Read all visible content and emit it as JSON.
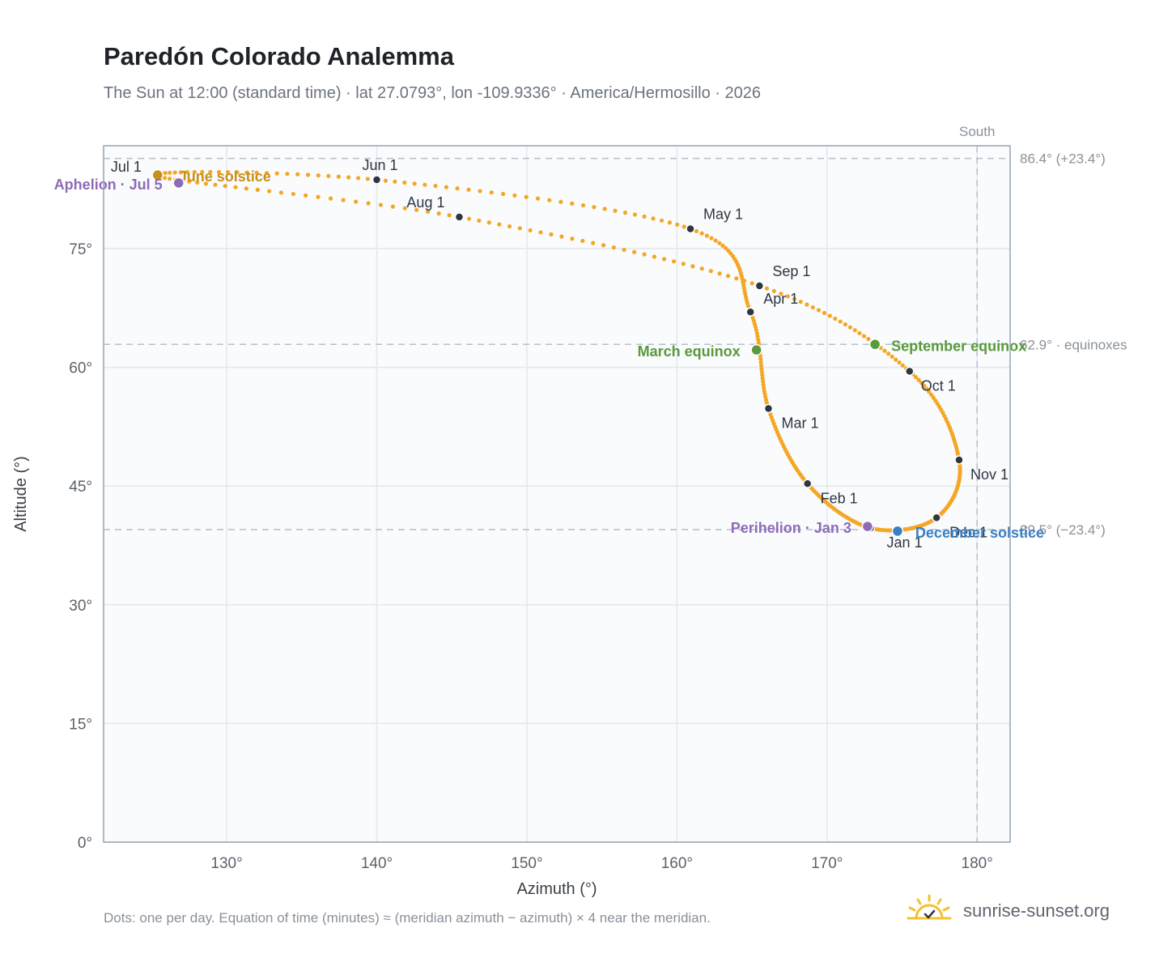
{
  "title": "Paredón Colorado Analemma",
  "subtitle": "The Sun at 12:00 (standard time) · lat 27.0793°, lon -109.9336° · America/Hermosillo · 2026",
  "footnote": "Dots: one per day. Equation of time (minutes) ≈ (meridian azimuth − azimuth) × 4 near the meridian.",
  "brand": "sunrise-sunset.org",
  "colors": {
    "curve": "#f5a623",
    "month_marker": "#2f3640",
    "solstice_june": "#c8901a",
    "solstice_december": "#3b7fc4",
    "equinox": "#5a9a3a",
    "apsis": "#8e6bb8",
    "grid": "#e3e8ee",
    "plot_bg": "#f9fbfd",
    "reference_line": "#b3c0cc"
  },
  "chart_data": {
    "type": "scatter",
    "xlabel": "Azimuth (°)",
    "ylabel": "Altitude (°)",
    "xlim": [
      121.8,
      182.2
    ],
    "ylim": [
      0,
      88
    ],
    "x_ticks": [
      130,
      140,
      150,
      160,
      170,
      180
    ],
    "x_tick_labels": [
      "130°",
      "140°",
      "150°",
      "160°",
      "170°",
      "180°"
    ],
    "y_ticks": [
      0,
      15,
      30,
      45,
      60,
      75
    ],
    "y_tick_labels": [
      "0°",
      "15°",
      "30°",
      "45°",
      "60°",
      "75°"
    ],
    "grid": true,
    "south_line": {
      "azimuth": 180,
      "label": "South"
    },
    "reference_lines": [
      {
        "altitude": 86.4,
        "label": "86.4° (+23.4°)"
      },
      {
        "altitude": 62.9,
        "label": "62.9° · equinoxes"
      },
      {
        "altitude": 39.5,
        "label": "39.5° (−23.4°)"
      }
    ],
    "daily_path": [
      {
        "azimuth": 172.9,
        "altitude": 39.7,
        "label": "Jan 1"
      },
      {
        "azimuth": 168.7,
        "altitude": 45.3,
        "label": "Feb 1"
      },
      {
        "azimuth": 166.1,
        "altitude": 54.8,
        "label": "Mar 1"
      },
      {
        "azimuth": 164.9,
        "altitude": 67.0,
        "label": "Apr 1"
      },
      {
        "azimuth": 160.9,
        "altitude": 77.5,
        "label": "May 1"
      },
      {
        "azimuth": 140.0,
        "altitude": 83.7,
        "label": "Jun 1"
      },
      {
        "azimuth": 125.3,
        "altitude": 84.2,
        "label": "Jul 1"
      },
      {
        "azimuth": 145.5,
        "altitude": 79.0,
        "label": "Aug 1"
      },
      {
        "azimuth": 165.5,
        "altitude": 70.3,
        "label": "Sep 1"
      },
      {
        "azimuth": 175.5,
        "altitude": 59.5,
        "label": "Oct 1"
      },
      {
        "azimuth": 178.8,
        "altitude": 48.3,
        "label": "Nov 1"
      },
      {
        "azimuth": 177.3,
        "altitude": 41.0,
        "label": "Dec 1"
      }
    ],
    "events": [
      {
        "name": "June solstice",
        "azimuth": 125.4,
        "altitude": 84.3,
        "kind": "solstice_june"
      },
      {
        "name": "December solstice",
        "azimuth": 174.7,
        "altitude": 39.3,
        "kind": "solstice_december"
      },
      {
        "name": "March equinox",
        "azimuth": 165.3,
        "altitude": 62.2,
        "kind": "equinox"
      },
      {
        "name": "September equinox",
        "azimuth": 173.2,
        "altitude": 62.9,
        "kind": "equinox"
      },
      {
        "name": "Aphelion · Jul 5",
        "azimuth": 126.8,
        "altitude": 83.3,
        "kind": "apsis"
      },
      {
        "name": "Perihelion · Jan 3",
        "azimuth": 172.7,
        "altitude": 39.9,
        "kind": "apsis"
      }
    ]
  }
}
